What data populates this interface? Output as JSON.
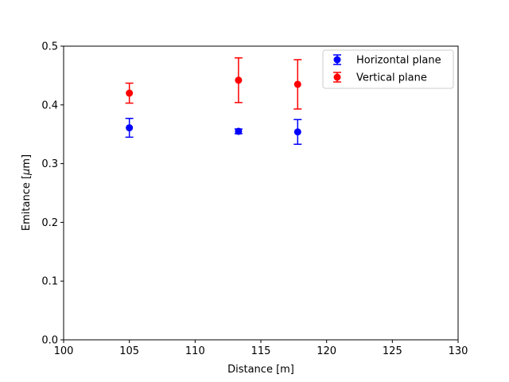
{
  "chart_data": {
    "type": "scatter",
    "title": "",
    "xlabel": "Distance [m]",
    "ylabel_prefix": "Emitance [",
    "ylabel_mu": "μ",
    "ylabel_suffix": "m]",
    "xlim": [
      100,
      130
    ],
    "ylim": [
      0,
      0.5
    ],
    "xticks": [
      100,
      105,
      110,
      115,
      120,
      125,
      130
    ],
    "xtick_labels": [
      "100",
      "105",
      "110",
      "115",
      "120",
      "125",
      "130"
    ],
    "yticks": [
      0.0,
      0.1,
      0.2,
      0.3,
      0.4,
      0.5
    ],
    "ytick_labels": [
      "0.0",
      "0.1",
      "0.2",
      "0.3",
      "0.4",
      "0.5"
    ],
    "grid": false,
    "legend_position": "top-right",
    "series": [
      {
        "name": "Horizontal plane",
        "color": "#0000ff",
        "x": [
          105.0,
          113.3,
          117.8
        ],
        "y": [
          0.361,
          0.355,
          0.354
        ],
        "yerr": [
          0.016,
          0.004,
          0.021
        ]
      },
      {
        "name": "Vertical plane",
        "color": "#ff0000",
        "x": [
          105.0,
          113.3,
          117.8
        ],
        "y": [
          0.42,
          0.442,
          0.435
        ],
        "yerr": [
          0.017,
          0.038,
          0.042
        ]
      }
    ]
  }
}
